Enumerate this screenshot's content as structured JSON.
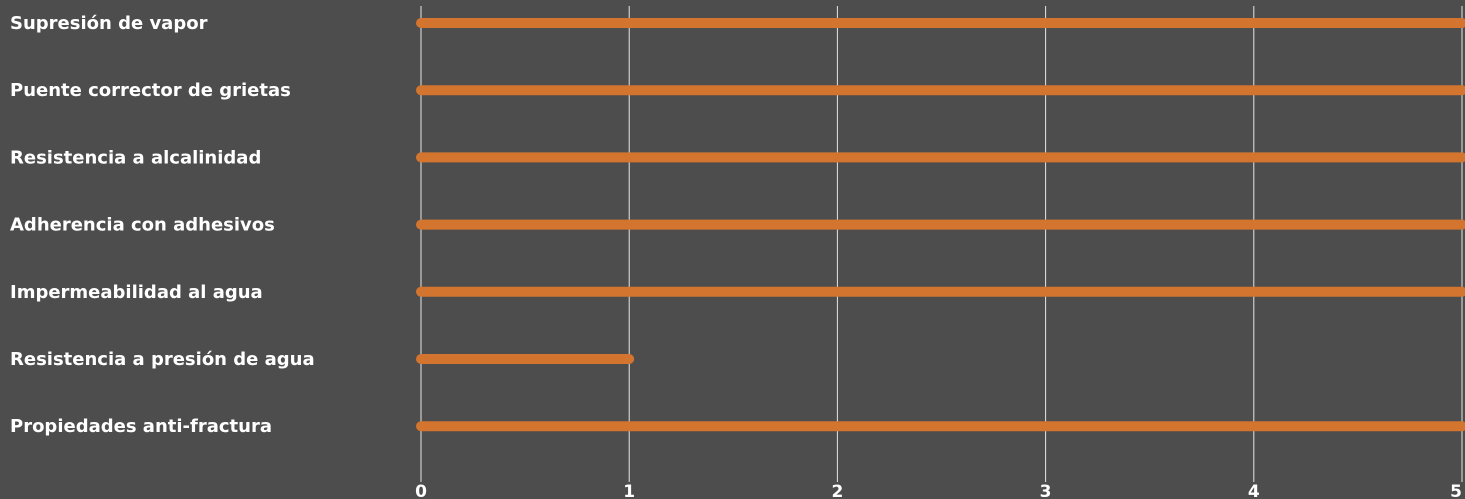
{
  "chart_data": {
    "type": "bar",
    "orientation": "horizontal",
    "categories": [
      "Supresión de vapor",
      "Puente corrector de grietas",
      "Resistencia a alcalinidad",
      "Adherencia con adhesivos",
      "Impermeabilidad al agua",
      "Resistencia a presión de agua",
      "Propiedades anti-fractura"
    ],
    "values": [
      5,
      5,
      5,
      5,
      5,
      1,
      5
    ],
    "x_ticks": [
      "0",
      "1",
      "2",
      "3",
      "4",
      "5"
    ],
    "xlim": [
      0,
      5
    ],
    "grid": true,
    "bar_color": "#d4752f",
    "grid_color": "#e6e6e6",
    "background": "#4d4d4d",
    "title": "",
    "xlabel": "",
    "ylabel": ""
  }
}
